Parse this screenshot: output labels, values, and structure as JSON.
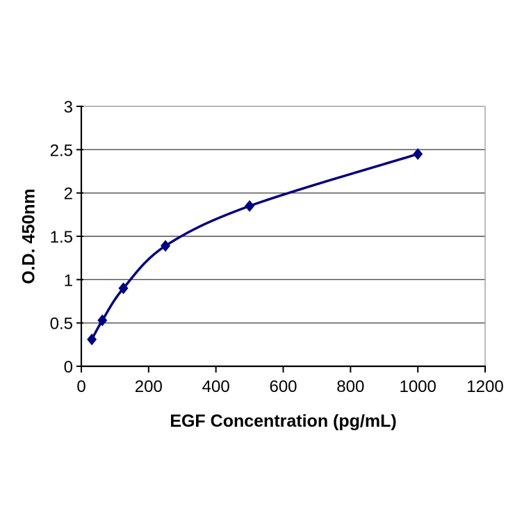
{
  "page": {
    "background": "#ffffff"
  },
  "chart_data": {
    "type": "line",
    "title": "",
    "xlabel": "EGF Concentration (pg/mL)",
    "ylabel": "O.D. 450nm",
    "x": [
      31.25,
      62.5,
      125,
      250,
      500,
      1000
    ],
    "y": [
      0.31,
      0.53,
      0.9,
      1.39,
      1.85,
      2.45
    ],
    "xlim": [
      0,
      1200
    ],
    "ylim": [
      0,
      3
    ],
    "x_ticks": [
      0,
      200,
      400,
      600,
      800,
      1000,
      1200
    ],
    "y_ticks": [
      0,
      0.5,
      1,
      1.5,
      2,
      2.5,
      3
    ],
    "x_tick_labels": [
      "0",
      "200",
      "400",
      "600",
      "800",
      "1000",
      "1200"
    ],
    "y_tick_labels": [
      "0",
      "0.5",
      "1",
      "1.5",
      "2",
      "2.5",
      "3"
    ],
    "grid": "horizontal",
    "legend": "none",
    "smooth": true,
    "marker": "diamond",
    "line_color": "#000080",
    "marker_color": "#000080",
    "gridline_color": "#4d4d4d",
    "plot_border_color": "#a0a0a0",
    "axis_color": "#000000",
    "text_color": "#000000"
  }
}
